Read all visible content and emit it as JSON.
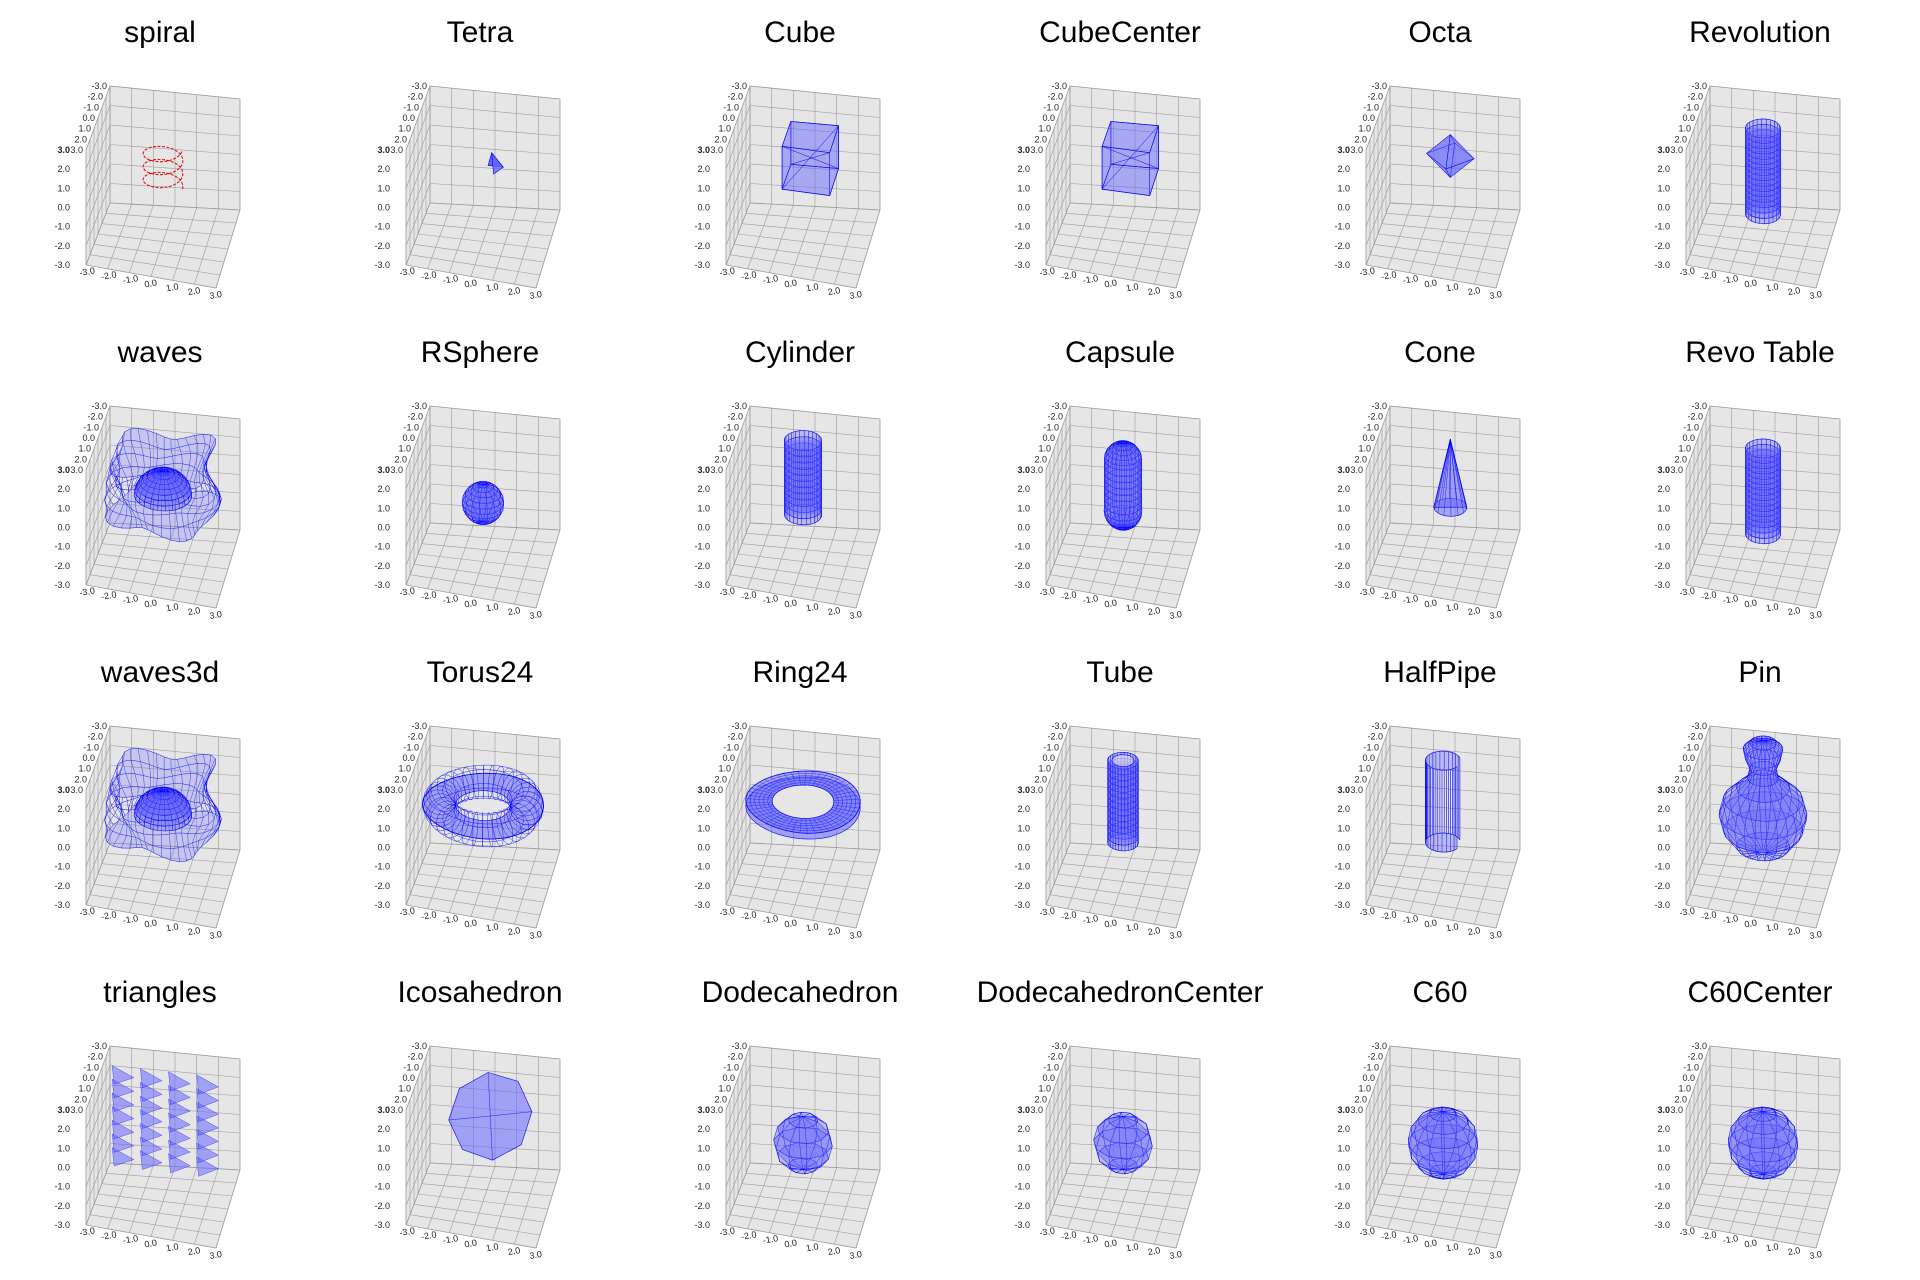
{
  "colors": {
    "panel_fill": "#e6e6e6",
    "grid_line": "#9a9a9a",
    "surface": "#0000ff",
    "surface_fill": "#6666ff",
    "spiral": "#e00000",
    "text": "#000000"
  },
  "chart_data": [
    {
      "title": "spiral",
      "type": "3d-line",
      "shape": "spiral",
      "color": "#e00000",
      "axis_ticks": [
        "-3.0",
        "-2.0",
        "-1.0",
        "0.0",
        "1.0",
        "2.0",
        "3.0"
      ],
      "xlim": [
        -3,
        3
      ],
      "ylim": [
        -3,
        3
      ],
      "zlim": [
        -3,
        3
      ],
      "grid": true
    },
    {
      "title": "Tetra",
      "type": "3d-mesh",
      "shape": "tetra",
      "color": "#0000ff",
      "axis_ticks": [
        "-3.0",
        "-2.0",
        "-1.0",
        "0.0",
        "1.0",
        "2.0",
        "3.0"
      ],
      "xlim": [
        -3,
        3
      ],
      "ylim": [
        -3,
        3
      ],
      "zlim": [
        -3,
        3
      ],
      "grid": true
    },
    {
      "title": "Cube",
      "type": "3d-mesh",
      "shape": "cube",
      "color": "#0000ff",
      "axis_ticks": [
        "-3.0",
        "-2.0",
        "-1.0",
        "0.0",
        "1.0",
        "2.0",
        "3.0"
      ],
      "xlim": [
        -3,
        3
      ],
      "ylim": [
        -3,
        3
      ],
      "zlim": [
        -3,
        3
      ],
      "grid": true
    },
    {
      "title": "CubeCenter",
      "type": "3d-mesh",
      "shape": "cube",
      "color": "#0000ff",
      "axis_ticks": [
        "-3.0",
        "-2.0",
        "-1.0",
        "0.0",
        "1.0",
        "2.0",
        "3.0"
      ],
      "xlim": [
        -3,
        3
      ],
      "ylim": [
        -3,
        3
      ],
      "zlim": [
        -3,
        3
      ],
      "grid": true
    },
    {
      "title": "Octa",
      "type": "3d-mesh",
      "shape": "octa",
      "color": "#0000ff",
      "axis_ticks": [
        "-3.0",
        "-2.0",
        "-1.0",
        "0.0",
        "1.0",
        "2.0",
        "3.0"
      ],
      "xlim": [
        -3,
        3
      ],
      "ylim": [
        -3,
        3
      ],
      "zlim": [
        -3,
        3
      ],
      "grid": true
    },
    {
      "title": "Revolution",
      "type": "3d-mesh",
      "shape": "cylinder-tall",
      "color": "#0000ff",
      "axis_ticks": [
        "-3.0",
        "-2.0",
        "-1.0",
        "0.0",
        "1.0",
        "2.0",
        "3.0"
      ],
      "xlim": [
        -3,
        3
      ],
      "ylim": [
        -3,
        3
      ],
      "zlim": [
        -3,
        3
      ],
      "grid": true
    },
    {
      "title": "waves",
      "type": "3d-mesh",
      "shape": "waves",
      "color": "#0000ff",
      "axis_ticks": [
        "-3.0",
        "-2.0",
        "-1.0",
        "0.0",
        "1.0",
        "2.0",
        "3.0"
      ],
      "xlim": [
        -3,
        3
      ],
      "ylim": [
        -3,
        3
      ],
      "zlim": [
        -3,
        3
      ],
      "grid": true
    },
    {
      "title": "RSphere",
      "type": "3d-mesh",
      "shape": "sphere",
      "color": "#0000ff",
      "axis_ticks": [
        "-3.0",
        "-2.0",
        "-1.0",
        "0.0",
        "1.0",
        "2.0",
        "3.0"
      ],
      "xlim": [
        -3,
        3
      ],
      "ylim": [
        -3,
        3
      ],
      "zlim": [
        -3,
        3
      ],
      "grid": true
    },
    {
      "title": "Cylinder",
      "type": "3d-mesh",
      "shape": "cylinder",
      "color": "#0000ff",
      "axis_ticks": [
        "-3.0",
        "-2.0",
        "-1.0",
        "0.0",
        "1.0",
        "2.0",
        "3.0"
      ],
      "xlim": [
        -3,
        3
      ],
      "ylim": [
        -3,
        3
      ],
      "zlim": [
        -3,
        3
      ],
      "grid": true
    },
    {
      "title": "Capsule",
      "type": "3d-mesh",
      "shape": "capsule",
      "color": "#0000ff",
      "axis_ticks": [
        "-3.0",
        "-2.0",
        "-1.0",
        "0.0",
        "1.0",
        "2.0",
        "3.0"
      ],
      "xlim": [
        -3,
        3
      ],
      "ylim": [
        -3,
        3
      ],
      "zlim": [
        -3,
        3
      ],
      "grid": true
    },
    {
      "title": "Cone",
      "type": "3d-mesh",
      "shape": "cone",
      "color": "#0000ff",
      "axis_ticks": [
        "-3.0",
        "-2.0",
        "-1.0",
        "0.0",
        "1.0",
        "2.0",
        "3.0"
      ],
      "xlim": [
        -3,
        3
      ],
      "ylim": [
        -3,
        3
      ],
      "zlim": [
        -3,
        3
      ],
      "grid": true
    },
    {
      "title": "Revo Table",
      "type": "3d-mesh",
      "shape": "cylinder-tall",
      "color": "#0000ff",
      "axis_ticks": [
        "-3.0",
        "-2.0",
        "-1.0",
        "0.0",
        "1.0",
        "2.0",
        "3.0"
      ],
      "xlim": [
        -3,
        3
      ],
      "ylim": [
        -3,
        3
      ],
      "zlim": [
        -3,
        3
      ],
      "grid": true
    },
    {
      "title": "waves3d",
      "type": "3d-mesh",
      "shape": "waves",
      "color": "#0000ff",
      "axis_ticks": [
        "-3.0",
        "-2.0",
        "-1.0",
        "0.0",
        "1.0",
        "2.0",
        "3.0"
      ],
      "xlim": [
        -3,
        3
      ],
      "ylim": [
        -3,
        3
      ],
      "zlim": [
        -3,
        3
      ],
      "grid": true
    },
    {
      "title": "Torus24",
      "type": "3d-mesh",
      "shape": "torus",
      "color": "#0000ff",
      "axis_ticks": [
        "-3.0",
        "-2.0",
        "-1.0",
        "0.0",
        "1.0",
        "2.0",
        "3.0"
      ],
      "xlim": [
        -3,
        3
      ],
      "ylim": [
        -3,
        3
      ],
      "zlim": [
        -3,
        3
      ],
      "grid": true
    },
    {
      "title": "Ring24",
      "type": "3d-mesh",
      "shape": "ring",
      "color": "#0000ff",
      "axis_ticks": [
        "-3.0",
        "-2.0",
        "-1.0",
        "0.0",
        "1.0",
        "2.0",
        "3.0"
      ],
      "xlim": [
        -3,
        3
      ],
      "ylim": [
        -3,
        3
      ],
      "zlim": [
        -3,
        3
      ],
      "grid": true
    },
    {
      "title": "Tube",
      "type": "3d-mesh",
      "shape": "tube",
      "color": "#0000ff",
      "axis_ticks": [
        "-3.0",
        "-2.0",
        "-1.0",
        "0.0",
        "1.0",
        "2.0",
        "3.0"
      ],
      "xlim": [
        -3,
        3
      ],
      "ylim": [
        -3,
        3
      ],
      "zlim": [
        -3,
        3
      ],
      "grid": true
    },
    {
      "title": "HalfPipe",
      "type": "3d-mesh",
      "shape": "halfpipe",
      "color": "#0000ff",
      "axis_ticks": [
        "-3.0",
        "-2.0",
        "-1.0",
        "0.0",
        "1.0",
        "2.0",
        "3.0"
      ],
      "xlim": [
        -3,
        3
      ],
      "ylim": [
        -3,
        3
      ],
      "zlim": [
        -3,
        3
      ],
      "grid": true
    },
    {
      "title": "Pin",
      "type": "3d-mesh",
      "shape": "pin",
      "color": "#0000ff",
      "axis_ticks": [
        "-3.0",
        "-2.0",
        "-1.0",
        "0.0",
        "1.0",
        "2.0",
        "3.0"
      ],
      "xlim": [
        -3,
        3
      ],
      "ylim": [
        -3,
        3
      ],
      "zlim": [
        -3,
        3
      ],
      "grid": true
    },
    {
      "title": "triangles",
      "type": "3d-mesh",
      "shape": "triangles",
      "color": "#0000ff",
      "axis_ticks": [
        "-3.0",
        "-2.0",
        "-1.0",
        "0.0",
        "1.0",
        "2.0",
        "3.0"
      ],
      "xlim": [
        -3,
        3
      ],
      "ylim": [
        -3,
        3
      ],
      "zlim": [
        -3,
        3
      ],
      "grid": true
    },
    {
      "title": "Icosahedron",
      "type": "3d-mesh",
      "shape": "icosa",
      "color": "#0000ff",
      "axis_ticks": [
        "-3.0",
        "-2.0",
        "-1.0",
        "0.0",
        "1.0",
        "2.0",
        "3.0"
      ],
      "xlim": [
        -3,
        3
      ],
      "ylim": [
        -3,
        3
      ],
      "zlim": [
        -3,
        3
      ],
      "grid": true
    },
    {
      "title": "Dodecahedron",
      "type": "3d-mesh",
      "shape": "polyball-small",
      "color": "#0000ff",
      "axis_ticks": [
        "-3.0",
        "-2.0",
        "-1.0",
        "0.0",
        "1.0",
        "2.0",
        "3.0"
      ],
      "xlim": [
        -3,
        3
      ],
      "ylim": [
        -3,
        3
      ],
      "zlim": [
        -3,
        3
      ],
      "grid": true
    },
    {
      "title": "DodecahedronCenter",
      "type": "3d-mesh",
      "shape": "polyball-small",
      "color": "#0000ff",
      "axis_ticks": [
        "-3.0",
        "-2.0",
        "-1.0",
        "0.0",
        "1.0",
        "2.0",
        "3.0"
      ],
      "xlim": [
        -3,
        3
      ],
      "ylim": [
        -3,
        3
      ],
      "zlim": [
        -3,
        3
      ],
      "grid": true
    },
    {
      "title": "C60",
      "type": "3d-mesh",
      "shape": "polyball",
      "color": "#0000ff",
      "axis_ticks": [
        "-3.0",
        "-2.0",
        "-1.0",
        "0.0",
        "1.0",
        "2.0",
        "3.0"
      ],
      "xlim": [
        -3,
        3
      ],
      "ylim": [
        -3,
        3
      ],
      "zlim": [
        -3,
        3
      ],
      "grid": true
    },
    {
      "title": "C60Center",
      "type": "3d-mesh",
      "shape": "polyball",
      "color": "#0000ff",
      "axis_ticks": [
        "-3.0",
        "-2.0",
        "-1.0",
        "0.0",
        "1.0",
        "2.0",
        "3.0"
      ],
      "xlim": [
        -3,
        3
      ],
      "ylim": [
        -3,
        3
      ],
      "zlim": [
        -3,
        3
      ],
      "grid": true
    }
  ]
}
